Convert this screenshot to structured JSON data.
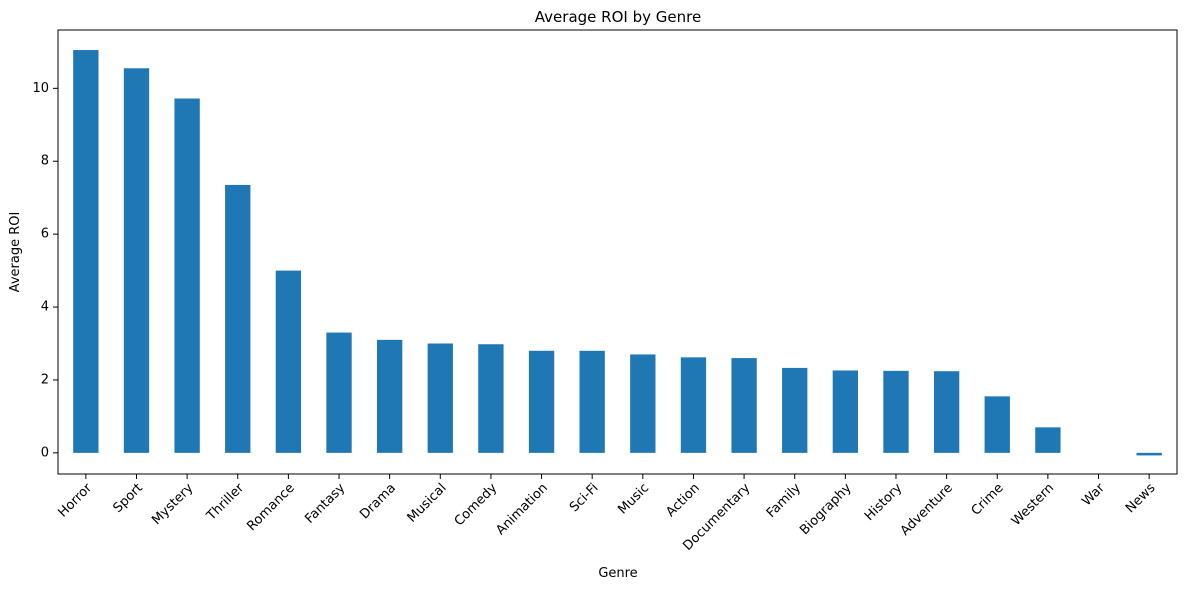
{
  "chart_data": {
    "type": "bar",
    "title": "Average ROI by Genre",
    "xlabel": "Genre",
    "ylabel": "Average ROI",
    "categories": [
      "Horror",
      "Sport",
      "Mystery",
      "Thriller",
      "Romance",
      "Fantasy",
      "Drama",
      "Musical",
      "Comedy",
      "Animation",
      "Sci-Fi",
      "Music",
      "Action",
      "Documentary",
      "Family",
      "Biography",
      "History",
      "Adventure",
      "Crime",
      "Western",
      "War",
      "News"
    ],
    "values": [
      11.05,
      10.55,
      9.72,
      7.35,
      5.0,
      3.3,
      3.1,
      3.0,
      2.98,
      2.8,
      2.8,
      2.7,
      2.62,
      2.6,
      2.33,
      2.26,
      2.25,
      2.24,
      1.55,
      0.7,
      0.0,
      -0.07
    ],
    "ylim": [
      -0.58,
      11.6
    ],
    "yticks": [
      0,
      2,
      4,
      6,
      8,
      10
    ],
    "grid": false,
    "legend": "none",
    "bar_color": "#1f77b4"
  }
}
